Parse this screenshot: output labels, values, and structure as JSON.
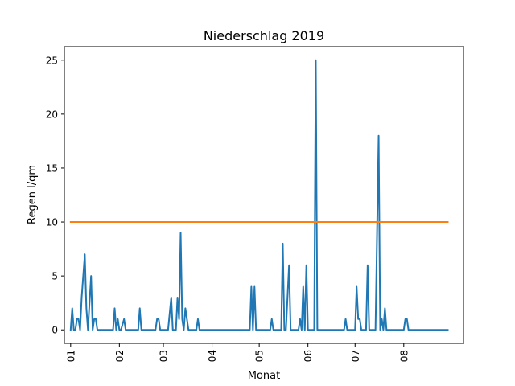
{
  "chart_data": {
    "type": "line",
    "title": "Niederschlag 2019",
    "xlabel": "Monat",
    "ylabel": "Regen l/qm",
    "xlim": [
      -4,
      250
    ],
    "ylim": [
      -1.25,
      26.25
    ],
    "x_ticks": [
      {
        "x": 0,
        "label": "01"
      },
      {
        "x": 31,
        "label": "02"
      },
      {
        "x": 59,
        "label": "03"
      },
      {
        "x": 90,
        "label": "04"
      },
      {
        "x": 120,
        "label": "05"
      },
      {
        "x": 151,
        "label": "06"
      },
      {
        "x": 181,
        "label": "07"
      },
      {
        "x": 212,
        "label": "08"
      }
    ],
    "y_ticks": [
      0,
      5,
      10,
      15,
      20,
      25
    ],
    "grid": false,
    "series": [
      {
        "color": "#1f77b4",
        "points": [
          [
            0,
            0
          ],
          [
            1,
            2
          ],
          [
            2,
            0
          ],
          [
            3,
            0
          ],
          [
            4,
            1
          ],
          [
            5,
            1
          ],
          [
            6,
            0
          ],
          [
            7,
            3
          ],
          [
            8,
            5
          ],
          [
            9,
            7
          ],
          [
            10,
            2
          ],
          [
            11,
            0
          ],
          [
            13,
            5
          ],
          [
            14,
            0
          ],
          [
            15,
            1
          ],
          [
            16,
            1
          ],
          [
            17,
            0
          ],
          [
            27,
            0
          ],
          [
            28,
            2
          ],
          [
            29,
            0
          ],
          [
            30,
            1
          ],
          [
            31,
            0
          ],
          [
            32,
            0
          ],
          [
            34,
            1
          ],
          [
            35,
            0
          ],
          [
            43,
            0
          ],
          [
            44,
            2
          ],
          [
            45,
            0
          ],
          [
            54,
            0
          ],
          [
            55,
            1
          ],
          [
            56,
            1
          ],
          [
            57,
            0
          ],
          [
            62,
            0
          ],
          [
            64,
            3
          ],
          [
            65,
            0
          ],
          [
            67,
            0
          ],
          [
            68,
            3
          ],
          [
            69,
            1
          ],
          [
            70,
            9
          ],
          [
            71,
            1
          ],
          [
            72,
            0
          ],
          [
            73,
            2
          ],
          [
            74,
            1
          ],
          [
            75,
            0
          ],
          [
            80,
            0
          ],
          [
            81,
            1
          ],
          [
            82,
            0
          ],
          [
            114,
            0
          ],
          [
            115,
            4
          ],
          [
            116,
            0
          ],
          [
            117,
            4
          ],
          [
            118,
            0
          ],
          [
            127,
            0
          ],
          [
            128,
            1
          ],
          [
            129,
            0
          ],
          [
            134,
            0
          ],
          [
            135,
            8
          ],
          [
            136,
            0
          ],
          [
            137,
            0
          ],
          [
            138,
            3
          ],
          [
            139,
            6
          ],
          [
            140,
            0
          ],
          [
            145,
            0
          ],
          [
            146,
            1
          ],
          [
            147,
            0
          ],
          [
            148,
            4
          ],
          [
            149,
            0
          ],
          [
            150,
            6
          ],
          [
            151,
            0
          ],
          [
            155,
            0
          ],
          [
            156,
            25
          ],
          [
            157,
            0
          ],
          [
            174,
            0
          ],
          [
            175,
            1
          ],
          [
            176,
            0
          ],
          [
            180,
            0
          ],
          [
            181,
            0
          ],
          [
            182,
            4
          ],
          [
            183,
            1
          ],
          [
            184,
            1
          ],
          [
            185,
            0
          ],
          [
            188,
            0
          ],
          [
            189,
            6
          ],
          [
            190,
            0
          ],
          [
            194,
            0
          ],
          [
            195,
            9
          ],
          [
            196,
            18
          ],
          [
            197,
            0
          ],
          [
            198,
            1
          ],
          [
            199,
            0
          ],
          [
            200,
            2
          ],
          [
            201,
            0
          ],
          [
            210,
            0
          ],
          [
            211,
            0
          ],
          [
            212,
            0
          ],
          [
            213,
            1
          ],
          [
            214,
            1
          ],
          [
            215,
            0
          ],
          [
            240,
            0
          ]
        ]
      },
      {
        "color": "#ff7f0e",
        "points": [
          [
            0,
            10
          ],
          [
            240,
            10
          ]
        ]
      }
    ]
  }
}
